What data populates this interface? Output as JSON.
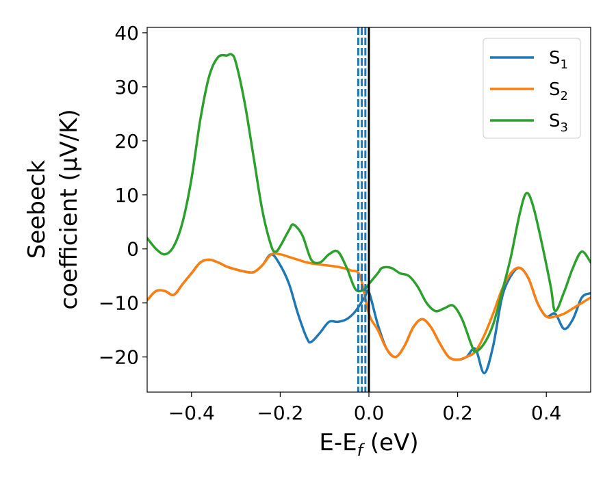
{
  "chart_data": {
    "type": "line",
    "xlabel": "E-E",
    "xlabel_sub": "f",
    "xlabel_unit": " (eV)",
    "ylabel_line1": "Seebeck",
    "ylabel_line2": "coefficient  (μV/K)",
    "xlim": [
      -0.5,
      0.5
    ],
    "ylim": [
      -26.5,
      41
    ],
    "xticks": [
      -0.4,
      -0.2,
      0.0,
      0.2,
      0.4
    ],
    "xtick_labels": [
      "−0.4",
      "−0.2",
      "0.0",
      "0.2",
      "0.4"
    ],
    "yticks": [
      -20,
      -10,
      0,
      10,
      20,
      30,
      40
    ],
    "ytick_labels": [
      "−20",
      "−10",
      "0",
      "10",
      "20",
      "30",
      "40"
    ],
    "legend_position": "top-right",
    "grid": false,
    "vlines": {
      "solid": {
        "x": 0.0,
        "color": "#000000"
      },
      "dashed": {
        "x": [
          -0.024,
          -0.016,
          -0.008
        ],
        "color": "#1f77b4"
      }
    },
    "series": [
      {
        "name": "S",
        "sub": "1",
        "color": "#1f77b4",
        "x": [
          -0.5,
          -0.48,
          -0.46,
          -0.44,
          -0.42,
          -0.4,
          -0.38,
          -0.36,
          -0.34,
          -0.32,
          -0.3,
          -0.28,
          -0.26,
          -0.24,
          -0.22,
          -0.2,
          -0.18,
          -0.16,
          -0.14,
          -0.13,
          -0.11,
          -0.09,
          -0.07,
          -0.05,
          -0.03,
          -0.01,
          0.0,
          0.02,
          0.04,
          0.06,
          0.08,
          0.1,
          0.12,
          0.14,
          0.16,
          0.18,
          0.2,
          0.22,
          0.24,
          0.26,
          0.28,
          0.3,
          0.32,
          0.34,
          0.36,
          0.38,
          0.4,
          0.42,
          0.44,
          0.46,
          0.48,
          0.5
        ],
        "y": [
          -9.5,
          -7.8,
          -7.8,
          -8.5,
          -6.5,
          -4.5,
          -2.5,
          -2.0,
          -2.5,
          -3.3,
          -3.8,
          -4.2,
          -4.3,
          -3.0,
          -1.0,
          -3.0,
          -6.5,
          -12.0,
          -16.5,
          -17.2,
          -15.5,
          -13.5,
          -13.5,
          -13.0,
          -11.5,
          -9.0,
          -8.0,
          -14.0,
          -18.5,
          -20.0,
          -18.0,
          -14.5,
          -13.0,
          -14.5,
          -17.5,
          -20.0,
          -20.5,
          -20.0,
          -18.5,
          -23.0,
          -18.0,
          -9.0,
          -5.0,
          -3.5,
          -5.5,
          -10.0,
          -12.5,
          -12.0,
          -14.8,
          -13.0,
          -9.0,
          -8.2
        ]
      },
      {
        "name": "S",
        "sub": "2",
        "color": "#ff7f0e",
        "x": [
          -0.5,
          -0.48,
          -0.46,
          -0.44,
          -0.42,
          -0.4,
          -0.38,
          -0.36,
          -0.34,
          -0.32,
          -0.3,
          -0.28,
          -0.26,
          -0.24,
          -0.22,
          -0.2,
          -0.18,
          -0.16,
          -0.14,
          -0.12,
          -0.1,
          -0.08,
          -0.06,
          -0.04,
          -0.02,
          0.0,
          0.02,
          0.04,
          0.06,
          0.08,
          0.1,
          0.12,
          0.14,
          0.16,
          0.18,
          0.2,
          0.22,
          0.24,
          0.26,
          0.28,
          0.3,
          0.32,
          0.34,
          0.36,
          0.38,
          0.4,
          0.42,
          0.44,
          0.46,
          0.48,
          0.5
        ],
        "y": [
          -9.5,
          -7.8,
          -7.8,
          -8.5,
          -6.5,
          -4.5,
          -2.5,
          -2.0,
          -2.5,
          -3.3,
          -3.8,
          -4.2,
          -4.3,
          -3.0,
          -1.0,
          -1.0,
          -1.5,
          -2.0,
          -2.5,
          -2.8,
          -3.0,
          -3.2,
          -3.5,
          -4.0,
          -5.0,
          -12.0,
          -15.0,
          -18.5,
          -20.0,
          -18.0,
          -14.5,
          -13.0,
          -14.5,
          -17.5,
          -20.0,
          -20.5,
          -20.0,
          -19.0,
          -16.0,
          -12.0,
          -7.5,
          -4.5,
          -3.5,
          -5.5,
          -10.0,
          -12.5,
          -12.5,
          -12.0,
          -11.0,
          -10.0,
          -9.0
        ]
      },
      {
        "name": "S",
        "sub": "3",
        "color": "#2ca02c",
        "x": [
          -0.5,
          -0.48,
          -0.46,
          -0.44,
          -0.42,
          -0.4,
          -0.38,
          -0.36,
          -0.34,
          -0.32,
          -0.31,
          -0.3,
          -0.28,
          -0.26,
          -0.24,
          -0.22,
          -0.21,
          -0.2,
          -0.18,
          -0.17,
          -0.15,
          -0.13,
          -0.11,
          -0.09,
          -0.07,
          -0.05,
          -0.03,
          -0.01,
          0.0,
          0.02,
          0.03,
          0.05,
          0.07,
          0.09,
          0.11,
          0.13,
          0.15,
          0.17,
          0.19,
          0.21,
          0.23,
          0.24,
          0.26,
          0.28,
          0.3,
          0.32,
          0.34,
          0.355,
          0.37,
          0.39,
          0.41,
          0.42,
          0.44,
          0.46,
          0.48,
          0.5
        ],
        "y": [
          2.0,
          0.0,
          -1.0,
          0.5,
          5.0,
          13.0,
          24.0,
          32.0,
          35.5,
          35.8,
          36.0,
          34.5,
          27.0,
          17.0,
          7.0,
          0.5,
          -0.5,
          0.5,
          3.5,
          4.5,
          2.5,
          -2.0,
          -2.5,
          -1.0,
          -0.5,
          -3.5,
          -7.5,
          -7.5,
          -6.5,
          -4.5,
          -3.5,
          -3.5,
          -4.5,
          -5.0,
          -7.0,
          -10.0,
          -11.5,
          -11.0,
          -10.5,
          -13.0,
          -17.5,
          -19.0,
          -17.5,
          -14.0,
          -8.0,
          -1.5,
          6.5,
          10.3,
          8.0,
          1.0,
          -7.0,
          -11.5,
          -8.0,
          -3.5,
          -0.5,
          -2.5
        ]
      }
    ]
  }
}
